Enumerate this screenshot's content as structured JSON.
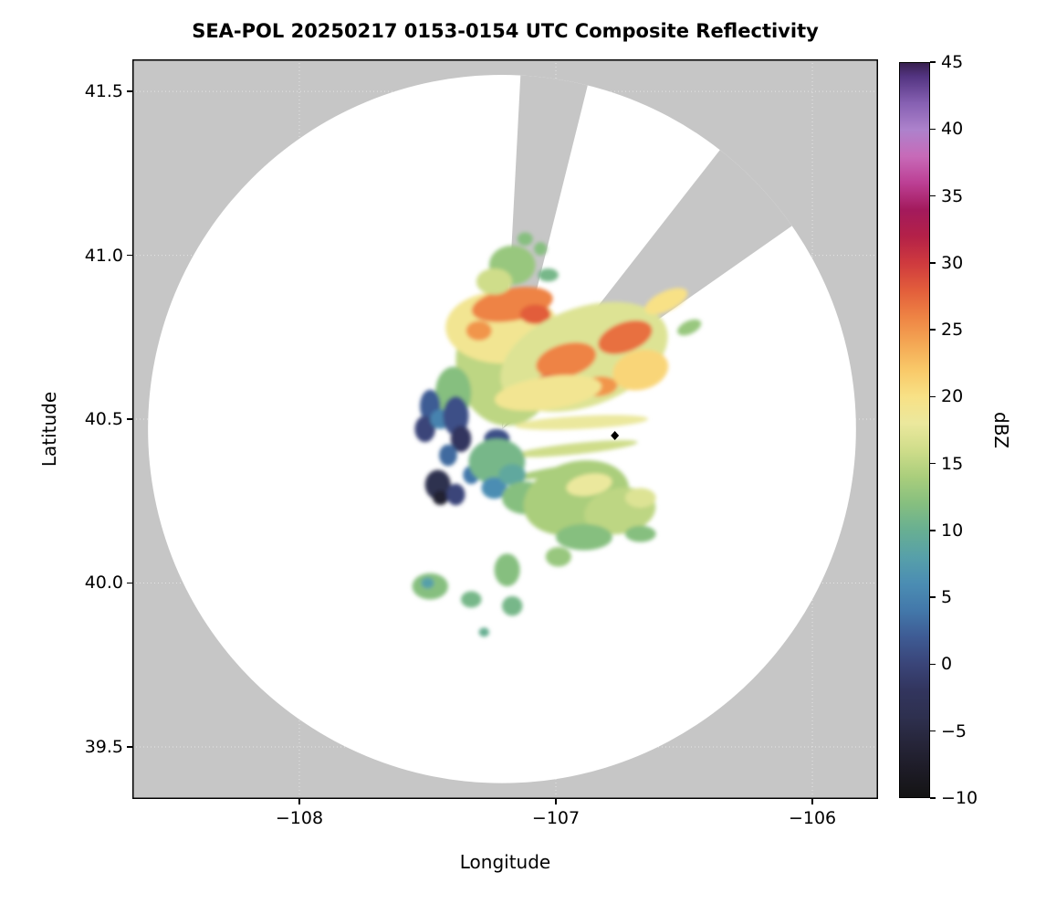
{
  "title": "SEA-POL 20250217 0153-0154 UTC Composite Reflectivity",
  "axes": {
    "x": {
      "label": "Longitude",
      "min": -108.651,
      "max": -105.744,
      "ticks": [
        {
          "value": -108,
          "label": "−108"
        },
        {
          "value": -107,
          "label": "−107"
        },
        {
          "value": -106,
          "label": "−106"
        }
      ]
    },
    "y": {
      "label": "Latitude",
      "min": 39.341,
      "max": 41.598,
      "ticks": [
        {
          "value": 41.5,
          "label": "41.5"
        },
        {
          "value": 41.0,
          "label": "41.0"
        },
        {
          "value": 40.5,
          "label": "40.5"
        },
        {
          "value": 40.0,
          "label": "40.0"
        },
        {
          "value": 39.5,
          "label": "39.5"
        }
      ]
    }
  },
  "colorbar": {
    "label": "dBZ",
    "min": -10,
    "max": 45,
    "ticks": [
      {
        "value": 45,
        "label": "45"
      },
      {
        "value": 40,
        "label": "40"
      },
      {
        "value": 35,
        "label": "35"
      },
      {
        "value": 30,
        "label": "30"
      },
      {
        "value": 25,
        "label": "25"
      },
      {
        "value": 20,
        "label": "20"
      },
      {
        "value": 15,
        "label": "15"
      },
      {
        "value": 10,
        "label": "10"
      },
      {
        "value": 5,
        "label": "5"
      },
      {
        "value": 0,
        "label": "0"
      },
      {
        "value": -5,
        "label": "−5"
      },
      {
        "value": -10,
        "label": "−10"
      }
    ],
    "stops": [
      [
        -10,
        "#141414"
      ],
      [
        -8,
        "#1d1b26"
      ],
      [
        -6,
        "#262539"
      ],
      [
        -4,
        "#2e304f"
      ],
      [
        -2,
        "#32355e"
      ],
      [
        0,
        "#3a4579"
      ],
      [
        2,
        "#3e5b94"
      ],
      [
        4,
        "#4378aa"
      ],
      [
        6,
        "#4b8db3"
      ],
      [
        8,
        "#57a0a9"
      ],
      [
        10,
        "#68af92"
      ],
      [
        12,
        "#86bf7f"
      ],
      [
        14,
        "#aace7c"
      ],
      [
        16,
        "#cfdd8a"
      ],
      [
        18,
        "#ebe89d"
      ],
      [
        20,
        "#f8e186"
      ],
      [
        22,
        "#f9c969"
      ],
      [
        24,
        "#f4a754"
      ],
      [
        26,
        "#ee8344"
      ],
      [
        28,
        "#e25d3b"
      ],
      [
        30,
        "#cf3a3e"
      ],
      [
        32,
        "#b42148"
      ],
      [
        34,
        "#a31a5c"
      ],
      [
        36,
        "#bc3f94"
      ],
      [
        38,
        "#c76ab8"
      ],
      [
        40,
        "#ad82cc"
      ],
      [
        42,
        "#8660b2"
      ],
      [
        44,
        "#533481"
      ],
      [
        45,
        "#38204f"
      ]
    ]
  },
  "colors": {
    "outside_scan": "#c6c6c6",
    "scan_area": "#ffffff",
    "blocked_sector": "#c6c6c6",
    "spine": "#000000",
    "grid": "rgba(255,255,255,0.55)"
  },
  "chart_data": {
    "type": "heatmap",
    "title": "SEA-POL 20250217 0153-0154 UTC Composite Reflectivity",
    "xlabel": "Longitude",
    "ylabel": "Latitude",
    "xlim": [
      -108.651,
      -105.744
    ],
    "ylim": [
      39.341,
      41.598
    ],
    "colorbar_label": "dBZ",
    "colorbar_range": [
      -10,
      45
    ],
    "radar": {
      "name": "SEA-POL",
      "lon": -107.21,
      "lat": 40.47,
      "scan_radius_deg_lon": 1.38
    },
    "blocked_sectors_az_deg": [
      [
        3,
        14
      ],
      [
        38,
        55
      ]
    ],
    "marker": {
      "lon": -106.77,
      "lat": 40.45,
      "shape": "diamond",
      "color": "#000000"
    },
    "echo_format": [
      "lon",
      "lat",
      "rlon_deg",
      "rlat_deg",
      "rotation_deg",
      "dbz"
    ],
    "echoes": [
      [
        -107.19,
        40.68,
        0.2,
        0.2,
        0,
        15
      ],
      [
        -107.21,
        40.78,
        0.22,
        0.11,
        0,
        19
      ],
      [
        -107.17,
        40.85,
        0.16,
        0.05,
        -10,
        26
      ],
      [
        -107.08,
        40.82,
        0.06,
        0.03,
        0,
        28
      ],
      [
        -107.3,
        40.77,
        0.05,
        0.03,
        0,
        25
      ],
      [
        -107.17,
        40.97,
        0.09,
        0.06,
        0,
        13
      ],
      [
        -107.12,
        41.05,
        0.03,
        0.02,
        0,
        12
      ],
      [
        -107.24,
        40.92,
        0.07,
        0.04,
        0,
        16
      ],
      [
        -107.4,
        40.58,
        0.07,
        0.08,
        0,
        12
      ],
      [
        -107.49,
        40.54,
        0.04,
        0.05,
        0,
        2
      ],
      [
        -107.51,
        40.47,
        0.04,
        0.04,
        0,
        0
      ],
      [
        -107.45,
        40.5,
        0.04,
        0.03,
        0,
        5
      ],
      [
        -107.03,
        40.94,
        0.04,
        0.02,
        0,
        11
      ],
      [
        -107.06,
        41.02,
        0.025,
        0.02,
        0,
        12
      ],
      [
        -106.89,
        40.69,
        0.34,
        0.15,
        -20,
        17
      ],
      [
        -106.96,
        40.68,
        0.12,
        0.05,
        -15,
        26
      ],
      [
        -106.73,
        40.75,
        0.11,
        0.045,
        -20,
        27
      ],
      [
        -107.03,
        40.61,
        0.05,
        0.025,
        0,
        29
      ],
      [
        -106.83,
        40.6,
        0.07,
        0.03,
        -5,
        25
      ],
      [
        -107.03,
        40.58,
        0.21,
        0.05,
        -8,
        19
      ],
      [
        -106.57,
        40.86,
        0.09,
        0.03,
        -25,
        20
      ],
      [
        -106.48,
        40.78,
        0.05,
        0.02,
        -25,
        13
      ],
      [
        -106.67,
        40.65,
        0.11,
        0.06,
        -15,
        21
      ],
      [
        -106.9,
        40.49,
        0.26,
        0.02,
        -3,
        18
      ],
      [
        -106.92,
        40.41,
        0.24,
        0.017,
        -6,
        16
      ],
      [
        -107.0,
        40.34,
        0.16,
        0.014,
        -9,
        14
      ],
      [
        -107.23,
        40.44,
        0.05,
        0.03,
        0,
        1
      ],
      [
        -107.39,
        40.51,
        0.05,
        0.06,
        0,
        1
      ],
      [
        -107.37,
        40.44,
        0.04,
        0.04,
        0,
        -2
      ],
      [
        -107.42,
        40.39,
        0.035,
        0.033,
        0,
        3
      ],
      [
        -107.46,
        40.3,
        0.05,
        0.045,
        0,
        -4
      ],
      [
        -107.45,
        40.26,
        0.03,
        0.022,
        0,
        -7
      ],
      [
        -107.39,
        40.27,
        0.036,
        0.033,
        0,
        0
      ],
      [
        -107.33,
        40.33,
        0.032,
        0.028,
        0,
        4
      ],
      [
        -107.23,
        40.37,
        0.11,
        0.07,
        0,
        11
      ],
      [
        -107.24,
        40.29,
        0.05,
        0.033,
        0,
        6
      ],
      [
        -107.17,
        40.33,
        0.053,
        0.033,
        0,
        9
      ],
      [
        -107.12,
        40.26,
        0.09,
        0.05,
        0,
        12
      ],
      [
        -107.03,
        40.22,
        0.036,
        0.022,
        0,
        7
      ],
      [
        -106.92,
        40.26,
        0.21,
        0.11,
        -15,
        14
      ],
      [
        -106.75,
        40.22,
        0.14,
        0.07,
        -10,
        15
      ],
      [
        -106.87,
        40.3,
        0.09,
        0.033,
        -10,
        18
      ],
      [
        -106.67,
        40.26,
        0.06,
        0.03,
        0,
        17
      ],
      [
        -106.89,
        40.14,
        0.11,
        0.04,
        0,
        12
      ],
      [
        -106.67,
        40.15,
        0.06,
        0.025,
        0,
        12
      ],
      [
        -107.49,
        39.99,
        0.07,
        0.04,
        0,
        12
      ],
      [
        -107.5,
        40.0,
        0.025,
        0.017,
        0,
        8
      ],
      [
        -107.33,
        39.95,
        0.04,
        0.025,
        0,
        11
      ],
      [
        -107.19,
        40.04,
        0.05,
        0.05,
        0,
        12
      ],
      [
        -107.17,
        39.93,
        0.04,
        0.03,
        0,
        11
      ],
      [
        -107.28,
        39.85,
        0.02,
        0.014,
        0,
        10
      ],
      [
        -106.99,
        40.08,
        0.05,
        0.03,
        0,
        13
      ]
    ]
  }
}
